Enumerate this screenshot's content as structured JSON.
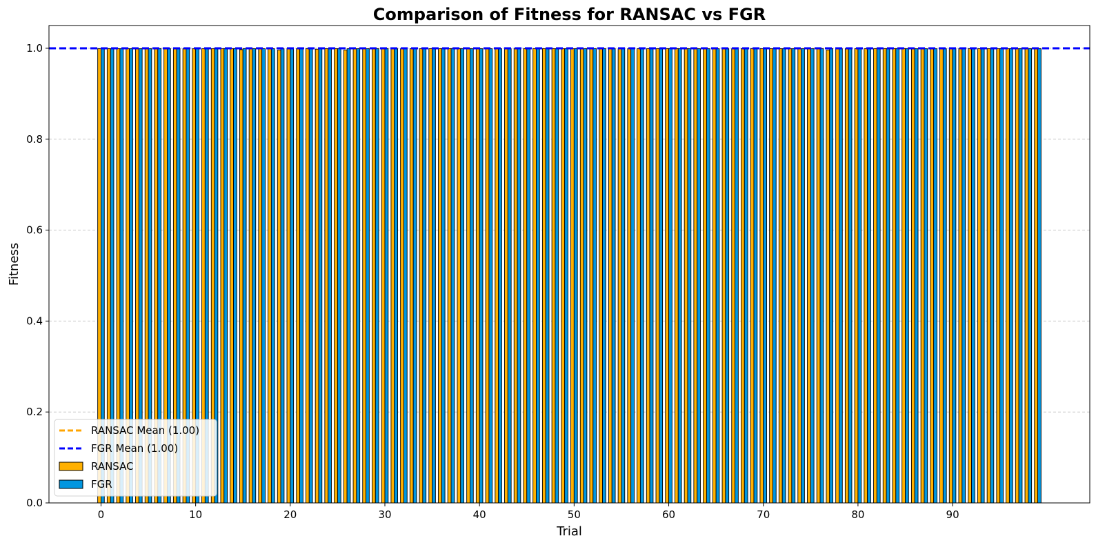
{
  "chart_data": {
    "type": "bar",
    "title": "Comparison of Fitness for RANSAC vs FGR",
    "xlabel": "Trial",
    "ylabel": "Fitness",
    "x": [
      0,
      1,
      2,
      3,
      4,
      5,
      6,
      7,
      8,
      9,
      10,
      11,
      12,
      13,
      14,
      15,
      16,
      17,
      18,
      19,
      20,
      21,
      22,
      23,
      24,
      25,
      26,
      27,
      28,
      29,
      30,
      31,
      32,
      33,
      34,
      35,
      36,
      37,
      38,
      39,
      40,
      41,
      42,
      43,
      44,
      45,
      46,
      47,
      48,
      49,
      50,
      51,
      52,
      53,
      54,
      55,
      56,
      57,
      58,
      59,
      60,
      61,
      62,
      63,
      64,
      65,
      66,
      67,
      68,
      69,
      70,
      71,
      72,
      73,
      74,
      75,
      76,
      77,
      78,
      79,
      80,
      81,
      82,
      83,
      84,
      85,
      86,
      87,
      88,
      89,
      90,
      91,
      92,
      93,
      94,
      95,
      96,
      97,
      98,
      99
    ],
    "xticks": [
      0,
      10,
      20,
      30,
      40,
      50,
      60,
      70,
      80,
      90
    ],
    "xticklabels": [
      "0",
      "10",
      "20",
      "30",
      "40",
      "50",
      "60",
      "70",
      "80",
      "90"
    ],
    "yticks": [
      0.0,
      0.2,
      0.4,
      0.6,
      0.8,
      1.0
    ],
    "yticklabels": [
      "0.0",
      "0.2",
      "0.4",
      "0.6",
      "0.8",
      "1.0"
    ],
    "xlim": [
      -5.5,
      104.5
    ],
    "ylim": [
      0,
      1.05
    ],
    "grid": "y-dashed",
    "legend_position": "lower-left",
    "series": [
      {
        "name": "RANSAC",
        "color": "#ffb000",
        "values": [
          0.999,
          0.999,
          0.999,
          0.999,
          0.999,
          0.999,
          0.999,
          0.999,
          0.999,
          0.999,
          0.999,
          0.999,
          0.999,
          0.999,
          0.999,
          0.997,
          0.999,
          0.999,
          0.999,
          0.996,
          0.999,
          0.999,
          0.999,
          0.998,
          0.999,
          0.999,
          0.996,
          0.999,
          0.999,
          0.999,
          0.999,
          0.999,
          0.999,
          0.999,
          0.999,
          0.999,
          0.999,
          0.999,
          0.999,
          0.999,
          0.999,
          0.999,
          0.999,
          0.999,
          0.999,
          0.999,
          0.999,
          0.999,
          0.999,
          0.999,
          0.999,
          0.999,
          0.999,
          0.999,
          0.999,
          0.999,
          0.999,
          0.999,
          0.999,
          0.999,
          0.999,
          0.999,
          0.999,
          0.999,
          0.999,
          0.999,
          0.999,
          0.999,
          0.999,
          0.999,
          0.999,
          0.999,
          0.999,
          0.999,
          0.999,
          0.999,
          0.999,
          0.996,
          0.999,
          0.999,
          0.999,
          0.999,
          0.999,
          0.999,
          0.999,
          0.999,
          0.999,
          0.999,
          0.999,
          0.999,
          0.999,
          0.999,
          0.999,
          0.999,
          0.999,
          0.999,
          0.999,
          0.999,
          0.999,
          0.999
        ]
      },
      {
        "name": "FGR",
        "color": "#0096e0",
        "values": [
          0.999,
          0.999,
          0.999,
          0.999,
          0.999,
          0.999,
          0.999,
          0.999,
          0.999,
          0.999,
          0.999,
          0.999,
          0.999,
          0.999,
          0.999,
          0.999,
          0.999,
          0.999,
          0.999,
          0.999,
          0.999,
          0.999,
          0.999,
          0.999,
          0.999,
          0.999,
          0.999,
          0.999,
          0.999,
          0.999,
          0.999,
          0.999,
          0.999,
          0.999,
          0.999,
          0.999,
          0.999,
          0.999,
          0.999,
          0.999,
          0.999,
          0.999,
          0.999,
          0.999,
          0.999,
          0.999,
          0.999,
          0.999,
          0.999,
          0.999,
          0.999,
          0.999,
          0.999,
          0.999,
          0.999,
          0.999,
          0.999,
          0.999,
          0.999,
          0.999,
          0.999,
          0.999,
          0.999,
          0.999,
          0.999,
          0.999,
          0.999,
          0.999,
          0.999,
          0.999,
          0.999,
          0.999,
          0.999,
          0.999,
          0.999,
          0.999,
          0.999,
          0.999,
          0.999,
          0.999,
          0.999,
          0.999,
          0.999,
          0.999,
          0.999,
          0.999,
          0.999,
          0.999,
          0.999,
          0.999,
          0.999,
          0.999,
          0.999,
          0.999,
          0.999,
          0.999,
          0.999,
          0.999,
          0.999,
          0.999
        ]
      }
    ],
    "mean_lines": [
      {
        "name": "RANSAC Mean (1.00)",
        "value": 1.0,
        "color": "#ffa500",
        "style": "dashed"
      },
      {
        "name": "FGR Mean (1.00)",
        "value": 1.0,
        "color": "#0000ff",
        "style": "dashed"
      }
    ]
  }
}
